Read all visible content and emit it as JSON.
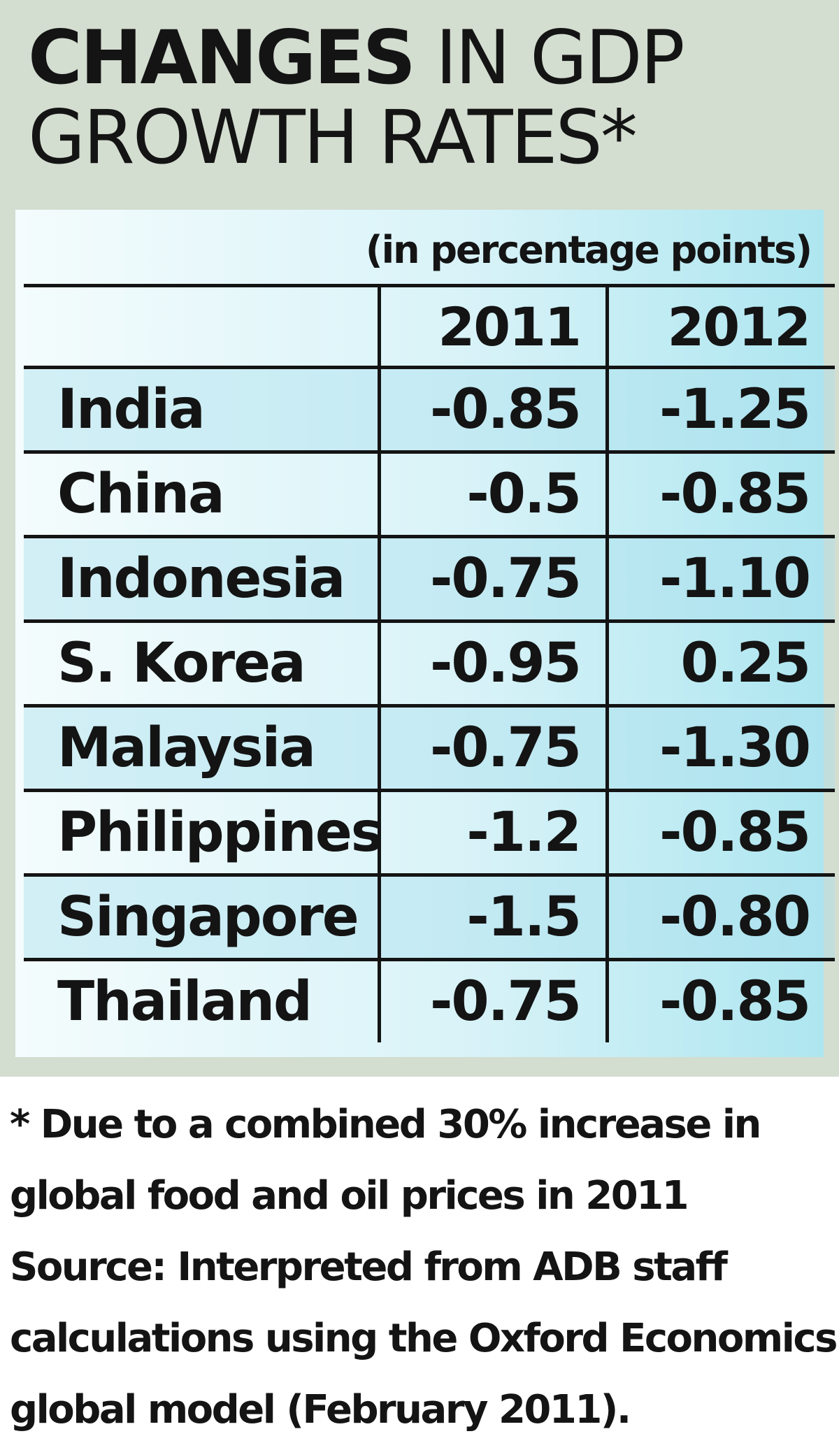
{
  "chart_data": {
    "type": "table",
    "title_bold": "CHANGES",
    "title_rest": " IN GDP GROWTH RATES*",
    "unit_label": "(in percentage points)",
    "columns": [
      "",
      "2011",
      "2012"
    ],
    "rows": [
      {
        "country": "India",
        "values": [
          "-0.85",
          "-1.25"
        ]
      },
      {
        "country": "China",
        "values": [
          "-0.5",
          "-0.85"
        ]
      },
      {
        "country": "Indonesia",
        "values": [
          "-0.75",
          "-1.10"
        ]
      },
      {
        "country": "S. Korea",
        "values": [
          "-0.95",
          "0.25"
        ]
      },
      {
        "country": "Malaysia",
        "values": [
          "-0.75",
          "-1.30"
        ]
      },
      {
        "country": "Philippines",
        "values": [
          "-1.2",
          "-0.85"
        ]
      },
      {
        "country": "Singapore",
        "values": [
          "-1.5",
          "-0.80"
        ]
      },
      {
        "country": "Thailand",
        "values": [
          "-0.75",
          "-0.85"
        ]
      }
    ],
    "footnote": "* Due to a combined 30% increase in global food and oil prices in 2011",
    "source": "Source: Interpreted from ADB staff calculations using the Oxford Economics global model (February 2011)."
  },
  "footnote_lines": [
    "* Due to a combined 30% increase in",
    "global food and oil prices in 2011"
  ],
  "source_lines": [
    "Source: Interpreted from ADB staff",
    "calculations using the Oxford Economics",
    "global model (February 2011)."
  ],
  "colors": {
    "panel_background": "#d3ddd0",
    "table_light": "#f4fcfd",
    "table_cyan": "#aee6f0",
    "text": "#141414"
  }
}
